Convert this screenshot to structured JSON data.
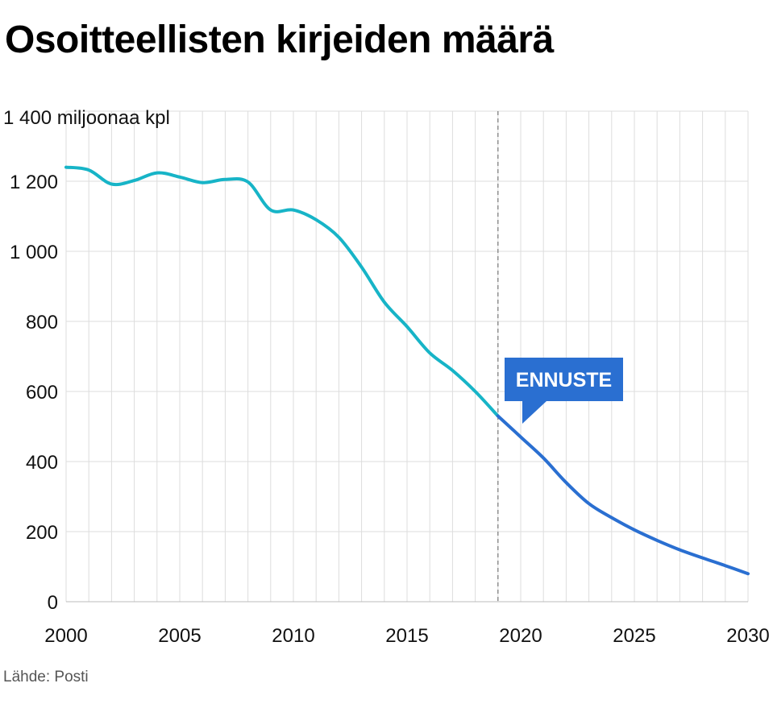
{
  "title": "Osoitteellisten kirjeiden määrä",
  "source": "Lähde: Posti",
  "chart_data": {
    "type": "line",
    "unit_label": "1 400 miljoonaa kpl",
    "xlim": [
      2000,
      2030
    ],
    "ylim": [
      0,
      1400
    ],
    "x_ticks": [
      2000,
      2005,
      2010,
      2015,
      2020,
      2025,
      2030
    ],
    "y_ticks": [
      {
        "value": 0,
        "label": "0"
      },
      {
        "value": 200,
        "label": "200"
      },
      {
        "value": 400,
        "label": "400"
      },
      {
        "value": 600,
        "label": "600"
      },
      {
        "value": 800,
        "label": "800"
      },
      {
        "value": 1000,
        "label": "1 000"
      },
      {
        "value": 1200,
        "label": "1 200"
      }
    ],
    "grid": true,
    "forecast_start": 2019,
    "forecast_label": "ENNUSTE",
    "series": [
      {
        "kind": "actual",
        "color": "#17b4c7",
        "x": [
          2000,
          2001,
          2002,
          2003,
          2004,
          2005,
          2006,
          2007,
          2008,
          2009,
          2010,
          2011,
          2012,
          2013,
          2014,
          2015,
          2016,
          2017,
          2018,
          2019
        ],
        "values": [
          1240,
          1232,
          1192,
          1202,
          1224,
          1212,
          1196,
          1205,
          1198,
          1118,
          1118,
          1090,
          1040,
          955,
          855,
          785,
          710,
          660,
          600,
          530
        ]
      },
      {
        "kind": "forecast",
        "color": "#2a6fd1",
        "x": [
          2019,
          2020,
          2021,
          2022,
          2023,
          2024,
          2025,
          2026,
          2027,
          2028,
          2029,
          2030
        ],
        "values": [
          530,
          470,
          410,
          340,
          280,
          240,
          205,
          175,
          148,
          125,
          103,
          80
        ]
      }
    ]
  }
}
